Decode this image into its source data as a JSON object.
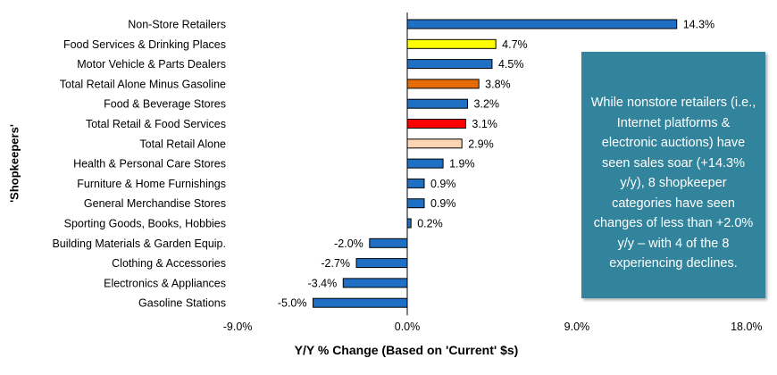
{
  "chart_data": {
    "type": "bar",
    "orientation": "horizontal",
    "categories": [
      "Non-Store Retailers",
      "Food Services & Drinking Places",
      "Motor Vehicle & Parts Dealers",
      "Total Retail Alone Minus Gasoline",
      "Food & Beverage Stores",
      "Total Retail & Food Services",
      "Total Retail Alone",
      "Health & Personal Care Stores",
      "Furniture & Home Furnishings",
      "General Merchandise Stores",
      "Sporting Goods, Books, Hobbies",
      "Building Materials & Garden Equip.",
      "Clothing & Accessories",
      "Electronics & Appliances",
      "Gasoline Stations"
    ],
    "values": [
      14.3,
      4.7,
      4.5,
      3.8,
      3.2,
      3.1,
      2.9,
      1.9,
      0.9,
      0.9,
      0.2,
      -2.0,
      -2.7,
      -3.4,
      -5.0
    ],
    "data_labels": [
      "14.3%",
      "4.7%",
      "4.5%",
      "3.8%",
      "3.2%",
      "3.1%",
      "2.9%",
      "1.9%",
      "0.9%",
      "0.9%",
      "0.2%",
      "-2.0%",
      "-2.7%",
      "-3.4%",
      "-5.0%"
    ],
    "bar_colors": [
      "#1f6fc5",
      "#ffff00",
      "#1f6fc5",
      "#e36c09",
      "#1f6fc5",
      "#ff0000",
      "#fcd5b5",
      "#1f6fc5",
      "#1f6fc5",
      "#1f6fc5",
      "#1f6fc5",
      "#1f6fc5",
      "#1f6fc5",
      "#1f6fc5",
      "#1f6fc5"
    ],
    "xlim": [
      -9.0,
      18.0
    ],
    "xticks": [
      -9.0,
      0.0,
      9.0,
      18.0
    ],
    "xtick_labels": [
      "-9.0%",
      "0.0%",
      "9.0%",
      "18.0%"
    ],
    "xlabel": "Y/Y % Change (Based on 'Current' $s)",
    "ylabel": "'Shopkeepers'",
    "title": "",
    "grid": false,
    "annotation": "While nonstore retailers (i.e., Internet platforms & electronic auctions) have seen sales soar (+14.3% y/y), 8 shopkeeper categories have seen changes of less than +2.0% y/y – with 4 of the 8 experiencing declines."
  }
}
